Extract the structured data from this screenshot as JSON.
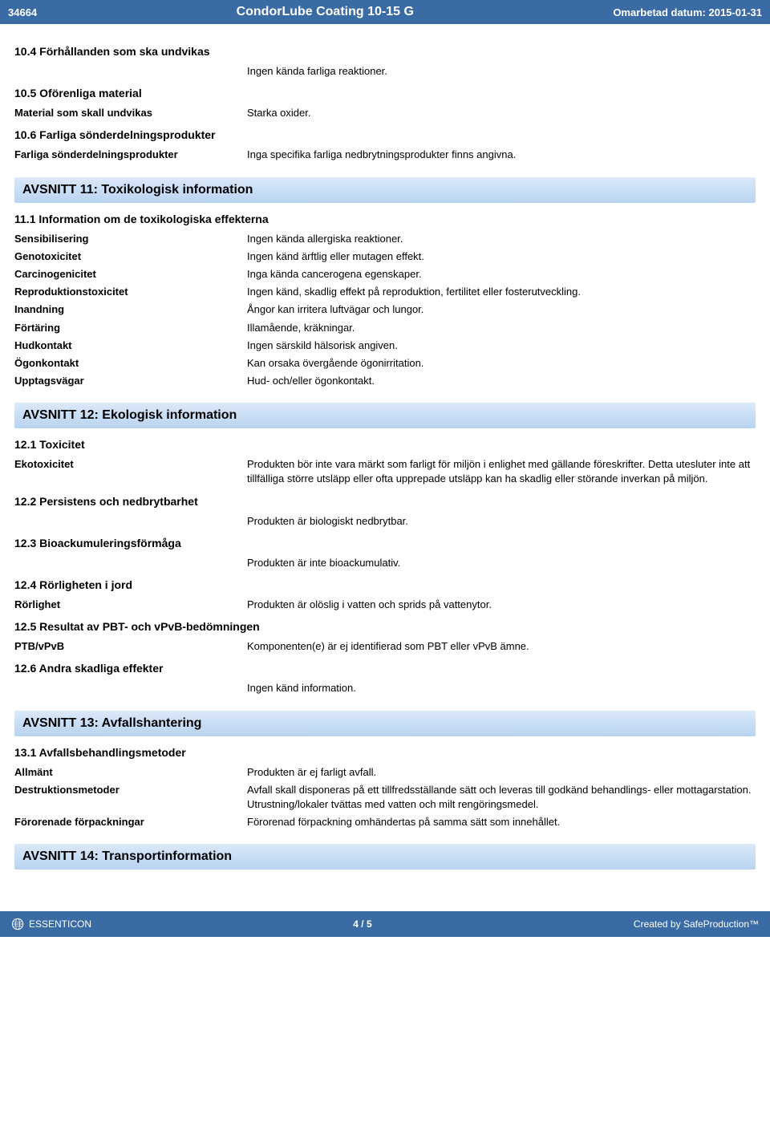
{
  "header": {
    "doc_number": "34664",
    "title": "CondorLube Coating 10-15 G",
    "revision": "Omarbetad datum: 2015-01-31"
  },
  "sec10": {
    "h104": "10.4 Förhållanden som ska undvikas",
    "v104": "Ingen kända farliga reaktioner.",
    "h105": "10.5 Oförenliga material",
    "l_material": "Material som skall undvikas",
    "v_material": "Starka oxider.",
    "h106": "10.6 Farliga sönderdelningsprodukter",
    "l_decomp": "Farliga sönderdelningsprodukter",
    "v_decomp": "Inga specifika farliga nedbrytningsprodukter finns angivna."
  },
  "sec11": {
    "title": "AVSNITT 11: Toxikologisk information",
    "h111": "11.1 Information om de toxikologiska effekterna",
    "rows": [
      {
        "label": "Sensibilisering",
        "value": "Ingen kända allergiska reaktioner."
      },
      {
        "label": "Genotoxicitet",
        "value": "Ingen känd ärftlig eller mutagen effekt."
      },
      {
        "label": "Carcinogenicitet",
        "value": "Inga kända cancerogena egenskaper."
      },
      {
        "label": "Reproduktionstoxicitet",
        "value": "Ingen känd, skadlig effekt på reproduktion, fertilitet eller fosterutveckling."
      },
      {
        "label": "Inandning",
        "value": "Ångor kan irritera luftvägar och lungor."
      },
      {
        "label": "Förtäring",
        "value": "Illamående, kräkningar."
      },
      {
        "label": "Hudkontakt",
        "value": "Ingen särskild hälsorisk angiven."
      },
      {
        "label": "Ögonkontakt",
        "value": "Kan orsaka övergående ögonirritation."
      },
      {
        "label": "Upptagsvägar",
        "value": "Hud- och/eller ögonkontakt."
      }
    ]
  },
  "sec12": {
    "title": "AVSNITT 12: Ekologisk information",
    "h121": "12.1 Toxicitet",
    "l_eco": "Ekotoxicitet",
    "v_eco": "Produkten bör inte vara märkt som farligt för miljön i enlighet med gällande föreskrifter. Detta utesluter inte att tillfälliga större utsläpp eller ofta upprepade utsläpp kan ha skadlig eller störande inverkan på miljön.",
    "h122": "12.2 Persistens och nedbrytbarhet",
    "v122": "Produkten är biologiskt nedbrytbar.",
    "h123": "12.3 Bioackumuleringsförmåga",
    "v123": "Produkten är inte bioackumulativ.",
    "h124": "12.4 Rörligheten i jord",
    "l_mob": "Rörlighet",
    "v_mob": "Produkten är olöslig i vatten och sprids på vattenytor.",
    "h125": "12.5 Resultat av PBT- och vPvB-bedömningen",
    "l_pbt": "PTB/vPvB",
    "v_pbt": "Komponenten(e) är ej identifierad som PBT eller vPvB ämne.",
    "h126": "12.6 Andra skadliga effekter",
    "v126": "Ingen känd information."
  },
  "sec13": {
    "title": "AVSNITT 13: Avfallshantering",
    "h131": "13.1 Avfallsbehandlingsmetoder",
    "rows": [
      {
        "label": "Allmänt",
        "value": "Produkten är ej farligt avfall."
      },
      {
        "label": "Destruktionsmetoder",
        "value": "Avfall skall disponeras på ett tillfredsställande sätt och leveras till godkänd behandlings- eller mottagarstation.\nUtrustning/lokaler tvättas med vatten och milt rengöringsmedel."
      },
      {
        "label": "Förorenade förpackningar",
        "value": "Förorenad förpackning omhändertas på samma sätt som innehållet."
      }
    ]
  },
  "sec14": {
    "title": "AVSNITT 14: Transportinformation"
  },
  "footer": {
    "brand": "ESSENTICON",
    "page": "4  /  5",
    "credit": "Created by SafeProduction™"
  }
}
